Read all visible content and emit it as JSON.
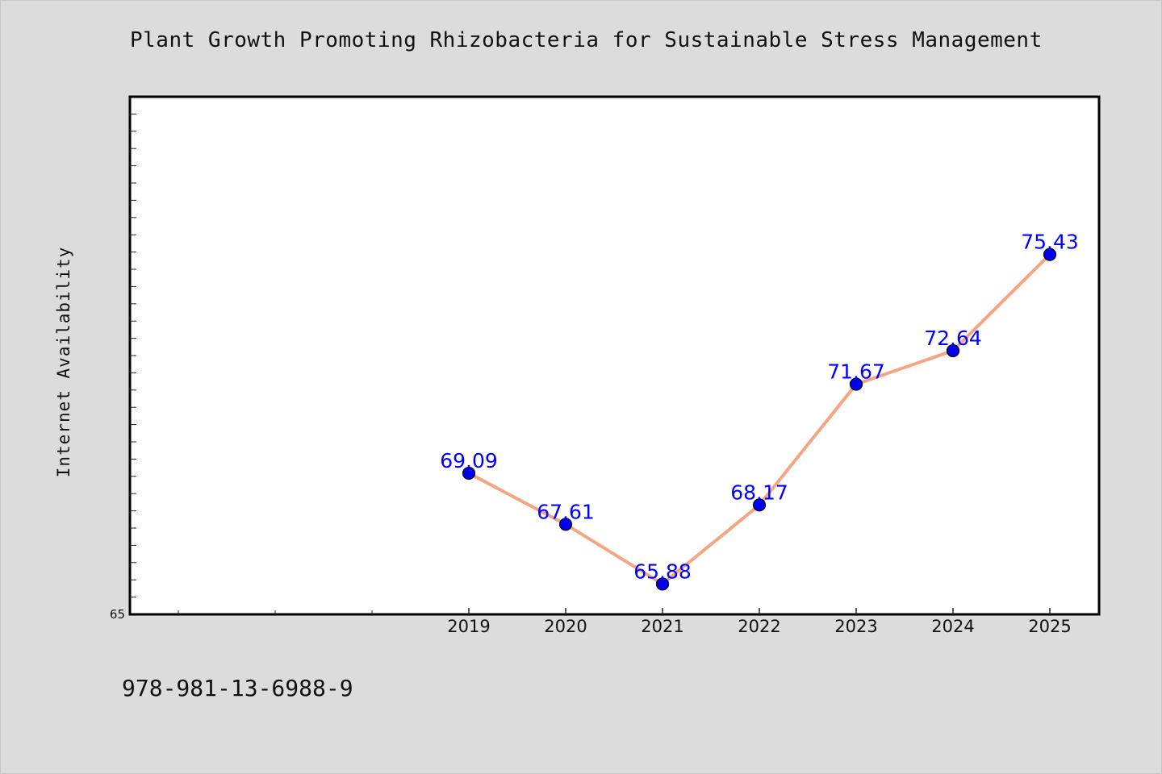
{
  "chart_data": {
    "type": "line",
    "title": "Plant Growth Promoting Rhizobacteria for Sustainable Stress Management",
    "xlabel": "",
    "ylabel": "Internet Availability",
    "categories": [
      "2019",
      "2020",
      "2021",
      "2022",
      "2023",
      "2024",
      "2025"
    ],
    "values": [
      69.09,
      67.61,
      65.88,
      68.17,
      71.67,
      72.64,
      75.43
    ],
    "data_labels": [
      "69.09",
      "67.61",
      "65.88",
      "68.17",
      "71.67",
      "72.64",
      "75.43"
    ],
    "ylim": [
      65,
      80
    ],
    "y_tick_labels": [
      "65"
    ],
    "grid": false,
    "legend": "none",
    "line_color": "#f4a582",
    "marker_color": "#0000ee",
    "label_color": "#0000ff"
  },
  "footer": {
    "isbn": "978-981-13-6988-9"
  }
}
